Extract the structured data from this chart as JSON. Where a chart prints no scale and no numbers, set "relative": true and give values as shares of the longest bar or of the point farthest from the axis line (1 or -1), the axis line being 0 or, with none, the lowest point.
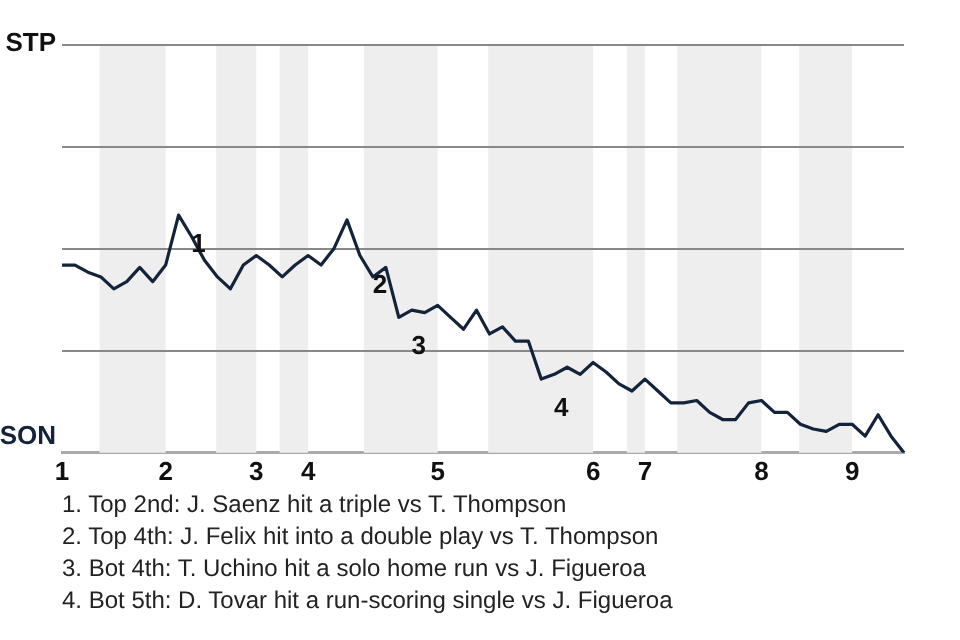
{
  "chart_data": {
    "type": "line",
    "relative": true,
    "categories": [
      "1",
      null,
      null,
      null,
      null,
      null,
      null,
      null,
      "2",
      null,
      null,
      null,
      null,
      null,
      null,
      "3",
      null,
      null,
      null,
      "4",
      null,
      null,
      null,
      null,
      null,
      null,
      null,
      null,
      null,
      "5",
      null,
      null,
      null,
      null,
      null,
      null,
      null,
      null,
      null,
      null,
      null,
      "6",
      null,
      null,
      null,
      "7",
      null,
      null,
      null,
      null,
      null,
      null,
      null,
      null,
      "8",
      null,
      null,
      null,
      null,
      null,
      null,
      "9",
      null,
      null,
      null,
      null
    ],
    "series": [
      {
        "color": "#13233a",
        "values": [
          0.79,
          0.79,
          0.76,
          0.74,
          0.69,
          0.72,
          0.78,
          0.72,
          0.79,
          1,
          0.91,
          0.81,
          0.74,
          0.69,
          0.79,
          0.83,
          0.79,
          0.74,
          0.79,
          0.83,
          0.79,
          0.86,
          0.98,
          0.83,
          0.74,
          0.78,
          0.57,
          0.6,
          0.59,
          0.62,
          0.57,
          0.52,
          0.6,
          0.5,
          0.53,
          0.47,
          0.47,
          0.31,
          0.33,
          0.36,
          0.33,
          0.38,
          0.34,
          0.29,
          0.26,
          0.31,
          0.26,
          0.21,
          0.21,
          0.22,
          0.17,
          0.14,
          0.14,
          0.21,
          0.22,
          0.17,
          0.17,
          0.12,
          0.1,
          0.09,
          0.12,
          0.12,
          0.07,
          0.16,
          0.07,
          0
        ]
      }
    ],
    "legend": false,
    "marker": "none",
    "line_style": "solid",
    "ref_lines": [
      {
        "axis": "y",
        "value": 0.43,
        "color": "#888888"
      },
      {
        "axis": "y",
        "value": 0.86,
        "color": "#888888"
      },
      {
        "axis": "y",
        "value": 1.29,
        "color": "#888888"
      },
      {
        "axis": "y",
        "value": 1.72,
        "color": "#888888"
      }
    ],
    "annotations": [
      "STP",
      "SON",
      "1",
      "2",
      "3",
      "4",
      "1. Top 2nd: J. Saenz hit a triple vs T. Thompson",
      "2. Top 4th: J. Felix hit into a double play vs T. Thompson",
      "3. Bot 4th: T. Uchino hit a solo home run vs J. Figueroa",
      "4. Bot 5th: D. Tovar hit a run-scoring single vs J. Figueroa"
    ]
  }
}
